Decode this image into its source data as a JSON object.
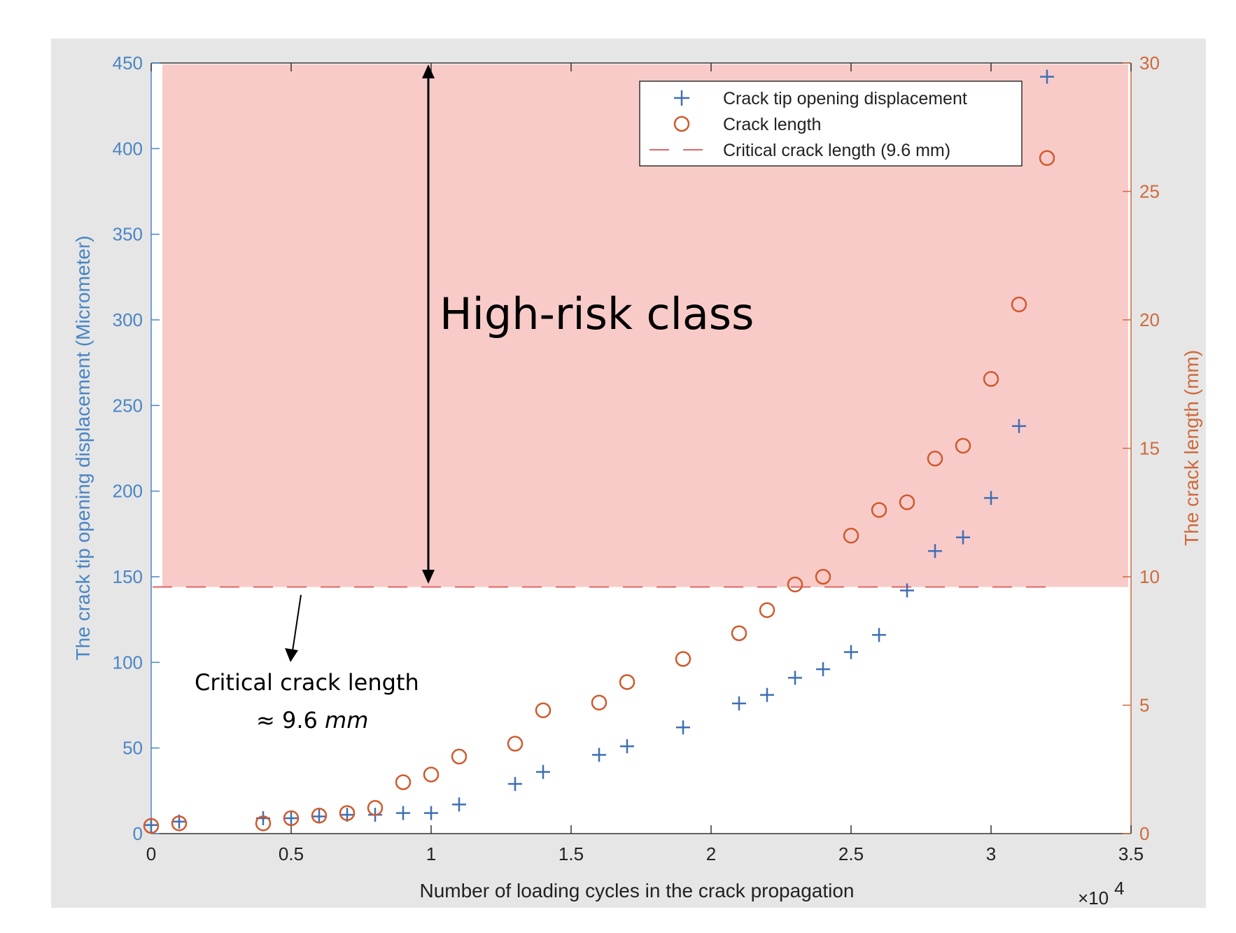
{
  "chart_data": {
    "type": "scatter",
    "title": "",
    "xlabel": "Number of loading cycles in the crack propagation",
    "x_multiplier_label": "×10",
    "x_multiplier_exp": "4",
    "ylabel_left": "The crack tip opening displacement (Micrometer)",
    "ylabel_right": "The crack length (mm)",
    "xlim": [
      0,
      3.5
    ],
    "ylim_left": [
      0,
      450
    ],
    "ylim_right": [
      0,
      30
    ],
    "x_ticks": [
      "0",
      "0.5",
      "1",
      "1.5",
      "2",
      "2.5",
      "3",
      "3.5"
    ],
    "y_left_ticks": [
      "0",
      "50",
      "100",
      "150",
      "200",
      "250",
      "300",
      "350",
      "400",
      "450"
    ],
    "y_right_ticks": [
      "0",
      "5",
      "10",
      "15",
      "20",
      "25",
      "30"
    ],
    "series": [
      {
        "name": "Crack tip opening displacement",
        "axis": "left",
        "marker": "+",
        "color": "#3f6fb5",
        "x": [
          0,
          0.1,
          0.4,
          0.5,
          0.6,
          0.7,
          0.8,
          0.9,
          1.0,
          1.1,
          1.3,
          1.4,
          1.6,
          1.7,
          1.9,
          2.1,
          2.2,
          2.3,
          2.4,
          2.5,
          2.6,
          2.7,
          2.8,
          2.9,
          3.0,
          3.1,
          3.2
        ],
        "values": [
          5,
          7,
          9,
          9,
          10,
          11,
          11,
          12,
          12,
          17,
          29,
          36,
          46,
          51,
          62,
          76,
          81,
          91,
          96,
          106,
          116,
          142,
          165,
          173,
          196,
          238,
          442
        ]
      },
      {
        "name": "Crack length",
        "axis": "right",
        "marker": "o",
        "color": "#cf5a2c",
        "x": [
          0,
          0.1,
          0.4,
          0.5,
          0.6,
          0.7,
          0.8,
          0.9,
          1.0,
          1.1,
          1.3,
          1.4,
          1.6,
          1.7,
          1.9,
          2.1,
          2.2,
          2.3,
          2.4,
          2.5,
          2.6,
          2.7,
          2.8,
          2.9,
          3.0,
          3.1,
          3.2
        ],
        "values": [
          0.3,
          0.4,
          0.4,
          0.6,
          0.7,
          0.8,
          1.0,
          2.0,
          2.3,
          3.0,
          3.5,
          4.8,
          5.1,
          5.9,
          6.8,
          7.8,
          8.7,
          9.7,
          10.0,
          11.6,
          12.6,
          12.9,
          14.6,
          15.1,
          17.7,
          20.6,
          26.3
        ]
      }
    ],
    "critical_line": {
      "name": "Critical crack length (9.6 mm)",
      "axis": "right",
      "value": 9.6,
      "color": "#e06666",
      "style": "dashed"
    },
    "legend": {
      "placement": "top-right",
      "entries": [
        "Crack tip opening displacement",
        "Crack length",
        "Critical crack length (9.6 mm)"
      ]
    },
    "high_risk_region": {
      "label": "High-risk class",
      "fill": "#f8cbc9",
      "from_right_value": 9.6
    },
    "annotations": {
      "critical_line1": "Critical crack length",
      "critical_line2_prefix": "≈ 9.6 ",
      "critical_line2_unit": "mm"
    }
  }
}
